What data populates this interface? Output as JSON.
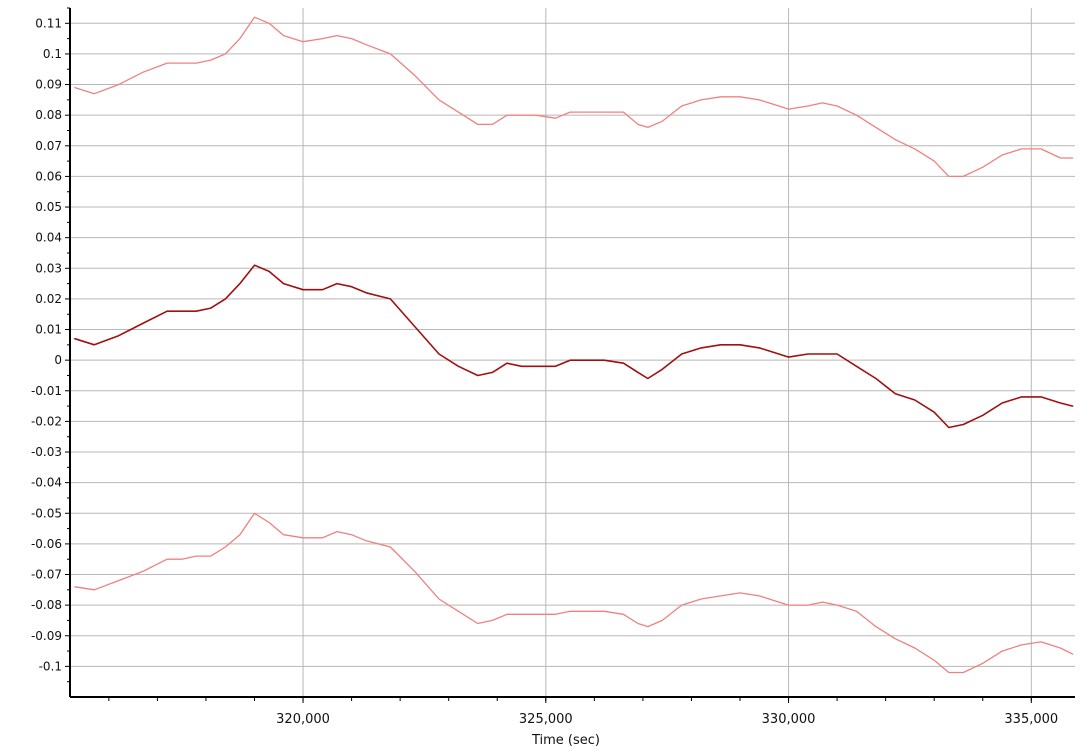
{
  "chart_data": {
    "type": "line",
    "xlabel": "Time (sec)",
    "ylabel": "",
    "xlim": [
      315200,
      335900
    ],
    "ylim": [
      -0.11,
      0.115
    ],
    "x_ticks": [
      320000,
      325000,
      330000,
      335000
    ],
    "x_tick_labels": [
      "320,000",
      "325,000",
      "330,000",
      "335,000"
    ],
    "y_ticks": [
      0.11,
      0.1,
      0.09,
      0.08,
      0.07,
      0.06,
      0.05,
      0.04,
      0.03,
      0.02,
      0.01,
      0,
      -0.01,
      -0.02,
      -0.03,
      -0.04,
      -0.05,
      -0.06,
      -0.07,
      -0.08,
      -0.09,
      -0.1
    ],
    "y_tick_labels": [
      "0.11",
      "0.1",
      "0.09",
      "0.08",
      "0.07",
      "0.06",
      "0.05",
      "0.04",
      "0.03",
      "0.02",
      "0.01",
      "0",
      "-0.01",
      "-0.02",
      "-0.03",
      "-0.04",
      "-0.05",
      "-0.06",
      "-0.07",
      "-0.08",
      "-0.09",
      "-0.1"
    ],
    "grid": true,
    "legend": "none",
    "colors": {
      "upper": "#f08080",
      "middle": "#a01010",
      "lower": "#f08080",
      "grid": "#b8b8b8"
    },
    "series": [
      {
        "x": [
          315300,
          315700,
          316200,
          316700,
          317200,
          317500,
          317800,
          318100,
          318400,
          318700,
          319000,
          319300,
          319600,
          320000,
          320400,
          320700,
          321000,
          321300,
          321800,
          322300,
          322800,
          323200,
          323600,
          323900,
          324200,
          324500,
          324800,
          325200,
          325500,
          325800,
          326200,
          326600,
          326900,
          327100,
          327400,
          327800,
          328200,
          328600,
          329000,
          329400,
          329800,
          330000,
          330400,
          330700,
          331000,
          331400,
          331800,
          332200,
          332600,
          333000,
          333300,
          333600,
          334000,
          334400,
          334800,
          335200,
          335600,
          335850
        ],
        "y": [
          0.089,
          0.087,
          0.09,
          0.094,
          0.097,
          0.097,
          0.097,
          0.098,
          0.1,
          0.105,
          0.112,
          0.11,
          0.106,
          0.104,
          0.105,
          0.106,
          0.105,
          0.103,
          0.1,
          0.093,
          0.085,
          0.081,
          0.077,
          0.077,
          0.08,
          0.08,
          0.08,
          0.079,
          0.081,
          0.081,
          0.081,
          0.081,
          0.077,
          0.076,
          0.078,
          0.083,
          0.085,
          0.086,
          0.086,
          0.085,
          0.083,
          0.082,
          0.083,
          0.084,
          0.083,
          0.08,
          0.076,
          0.072,
          0.069,
          0.065,
          0.06,
          0.06,
          0.063,
          0.067,
          0.069,
          0.069,
          0.066,
          0.066
        ]
      },
      {
        "x": [
          315300,
          315700,
          316200,
          316700,
          317200,
          317500,
          317800,
          318100,
          318400,
          318700,
          319000,
          319300,
          319600,
          320000,
          320400,
          320700,
          321000,
          321300,
          321800,
          322300,
          322800,
          323200,
          323600,
          323900,
          324200,
          324500,
          324800,
          325200,
          325500,
          325800,
          326200,
          326600,
          326900,
          327100,
          327400,
          327800,
          328200,
          328600,
          329000,
          329400,
          329800,
          330000,
          330400,
          330700,
          331000,
          331400,
          331800,
          332200,
          332600,
          333000,
          333300,
          333600,
          334000,
          334400,
          334800,
          335200,
          335600,
          335850
        ],
        "y": [
          0.007,
          0.005,
          0.008,
          0.012,
          0.016,
          0.016,
          0.016,
          0.017,
          0.02,
          0.025,
          0.031,
          0.029,
          0.025,
          0.023,
          0.023,
          0.025,
          0.024,
          0.022,
          0.02,
          0.011,
          0.002,
          -0.002,
          -0.005,
          -0.004,
          -0.001,
          -0.002,
          -0.002,
          -0.002,
          0,
          0,
          0,
          -0.001,
          -0.004,
          -0.006,
          -0.003,
          0.002,
          0.004,
          0.005,
          0.005,
          0.004,
          0.002,
          0.001,
          0.002,
          0.002,
          0.002,
          -0.002,
          -0.006,
          -0.011,
          -0.013,
          -0.017,
          -0.022,
          -0.021,
          -0.018,
          -0.014,
          -0.012,
          -0.012,
          -0.014,
          -0.015
        ]
      },
      {
        "x": [
          315300,
          315700,
          316200,
          316700,
          317200,
          317500,
          317800,
          318100,
          318400,
          318700,
          319000,
          319300,
          319600,
          320000,
          320400,
          320700,
          321000,
          321300,
          321800,
          322300,
          322800,
          323200,
          323600,
          323900,
          324200,
          324500,
          324800,
          325200,
          325500,
          325800,
          326200,
          326600,
          326900,
          327100,
          327400,
          327800,
          328200,
          328600,
          329000,
          329400,
          329800,
          330000,
          330400,
          330700,
          331000,
          331400,
          331800,
          332200,
          332600,
          333000,
          333300,
          333600,
          334000,
          334400,
          334800,
          335200,
          335600,
          335850
        ],
        "y": [
          -0.074,
          -0.075,
          -0.072,
          -0.069,
          -0.065,
          -0.065,
          -0.064,
          -0.064,
          -0.061,
          -0.057,
          -0.05,
          -0.053,
          -0.057,
          -0.058,
          -0.058,
          -0.056,
          -0.057,
          -0.059,
          -0.061,
          -0.069,
          -0.078,
          -0.082,
          -0.086,
          -0.085,
          -0.083,
          -0.083,
          -0.083,
          -0.083,
          -0.082,
          -0.082,
          -0.082,
          -0.083,
          -0.086,
          -0.087,
          -0.085,
          -0.08,
          -0.078,
          -0.077,
          -0.076,
          -0.077,
          -0.079,
          -0.08,
          -0.08,
          -0.079,
          -0.08,
          -0.082,
          -0.087,
          -0.091,
          -0.094,
          -0.098,
          -0.102,
          -0.102,
          -0.099,
          -0.095,
          -0.093,
          -0.092,
          -0.094,
          -0.096
        ]
      }
    ]
  }
}
